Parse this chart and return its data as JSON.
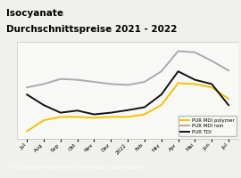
{
  "title_line1": "Isocyanate",
  "title_line2": "Durchschnittspreise 2021 - 2022",
  "title_bg": "#f5c200",
  "footer": "© 2022 Kunststoff Information, Bad Homburg - www.kiweb.de",
  "x_labels": [
    "Jul",
    "Aug",
    "Sep",
    "Okt",
    "Nov",
    "Dez",
    "2022",
    "Feb",
    "Mrz",
    "Apr",
    "Mai",
    "Jun",
    "Jul"
  ],
  "pur_mdi_polymer": [
    1.48,
    1.74,
    1.82,
    1.82,
    1.8,
    1.82,
    1.82,
    1.88,
    2.1,
    2.62,
    2.6,
    2.52,
    2.25
  ],
  "pur_mdi_rein": [
    2.52,
    2.6,
    2.72,
    2.7,
    2.65,
    2.6,
    2.58,
    2.65,
    2.9,
    3.38,
    3.35,
    3.15,
    2.92
  ],
  "pur_tdi": [
    2.35,
    2.1,
    1.92,
    1.97,
    1.88,
    1.92,
    1.98,
    2.05,
    2.35,
    2.9,
    2.7,
    2.6,
    2.1
  ],
  "color_polymer": "#f5c200",
  "color_rein": "#aaaaaa",
  "color_tdi": "#111111",
  "bg_chart": "#f0f0ec",
  "bg_plot_area": "#f8f8f6",
  "grid_color": "#ffffff",
  "footer_bg": "#888888",
  "footer_color": "#ffffff",
  "ylim": [
    1.3,
    3.6
  ],
  "legend_labels": [
    "PUR MDI polymer",
    "PUR MDI rein",
    "PUR TDI"
  ]
}
